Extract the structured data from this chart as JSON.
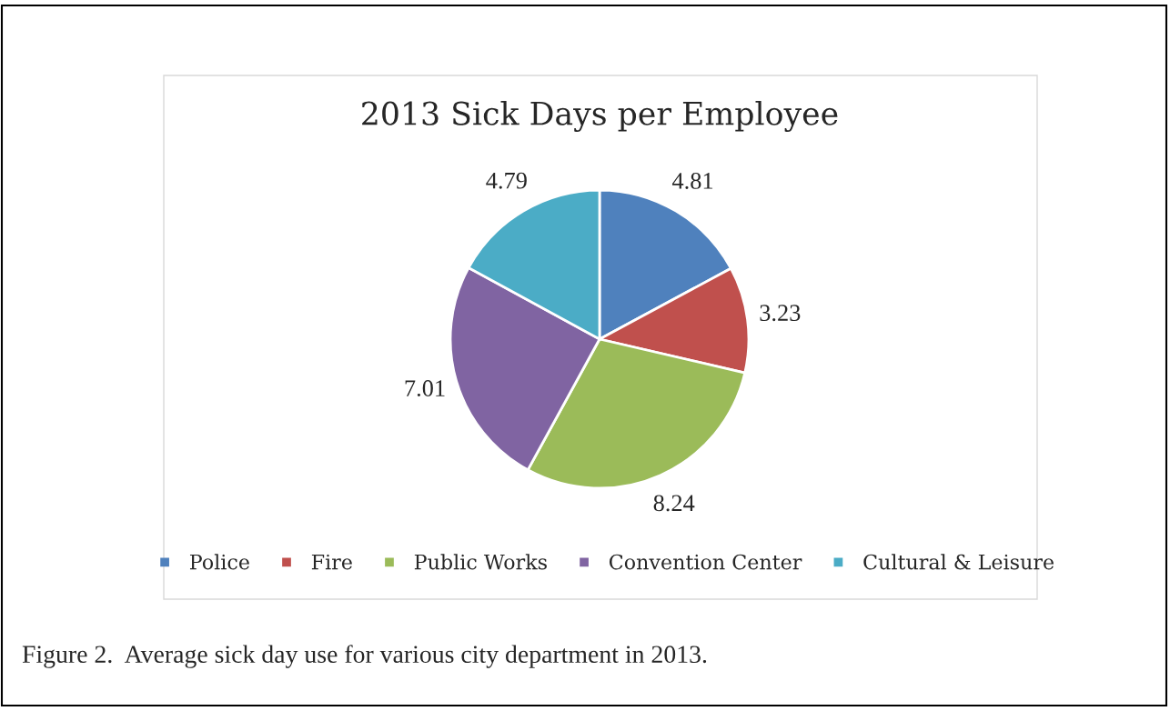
{
  "chart_data": {
    "type": "pie",
    "title": "2013 Sick Days per Employee",
    "categories": [
      "Police",
      "Fire",
      "Public Works",
      "Convention Center",
      "Cultural & Leisure"
    ],
    "values": [
      4.81,
      3.23,
      8.24,
      7.01,
      4.79
    ],
    "colors": [
      "#4f81bd",
      "#c0504d",
      "#9bbb59",
      "#8064a2",
      "#4bacc6"
    ],
    "data_labels": true,
    "legend": "bottom",
    "annotations": [
      "Figure 2.  Average sick day use for various city department in 2013."
    ]
  }
}
